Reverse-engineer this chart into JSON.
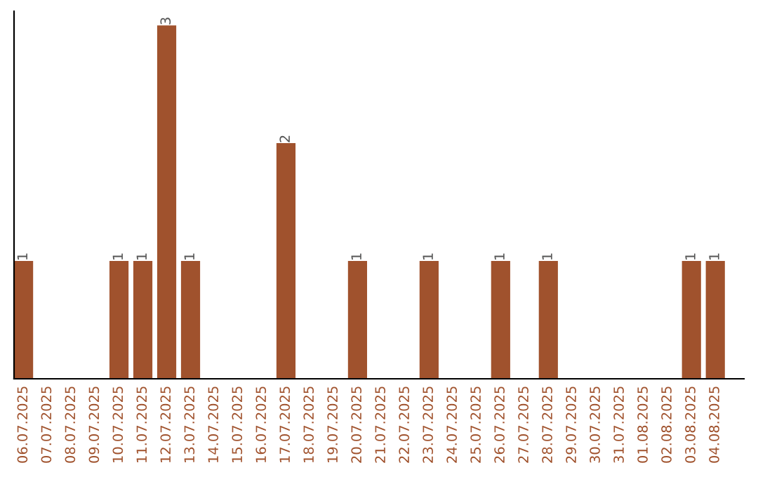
{
  "chart_data": {
    "type": "bar",
    "categories": [
      "06.07.2025",
      "07.07.2025",
      "08.07.2025",
      "09.07.2025",
      "10.07.2025",
      "11.07.2025",
      "12.07.2025",
      "13.07.2025",
      "14.07.2025",
      "15.07.2025",
      "16.07.2025",
      "17.07.2025",
      "18.07.2025",
      "19.07.2025",
      "20.07.2025",
      "21.07.2025",
      "22.07.2025",
      "23.07.2025",
      "24.07.2025",
      "25.07.2025",
      "26.07.2025",
      "27.07.2025",
      "28.07.2025",
      "29.07.2025",
      "30.07.2025",
      "31.07.2025",
      "01.08.2025",
      "02.08.2025",
      "03.08.2025",
      "04.08.2025"
    ],
    "values": [
      1,
      0,
      0,
      0,
      1,
      1,
      3,
      1,
      0,
      0,
      0,
      2,
      0,
      0,
      1,
      0,
      0,
      1,
      0,
      0,
      1,
      0,
      1,
      0,
      0,
      0,
      0,
      0,
      1,
      1
    ],
    "value_labels": [
      "1",
      null,
      null,
      null,
      "1",
      "1",
      "3",
      "1",
      null,
      null,
      null,
      "2",
      null,
      null,
      "1",
      null,
      null,
      "1",
      null,
      null,
      "1",
      null,
      "1",
      null,
      null,
      null,
      null,
      null,
      "1",
      "1"
    ],
    "color": "#a0522d",
    "grid": false,
    "legend": false,
    "tick_labels": "x"
  }
}
